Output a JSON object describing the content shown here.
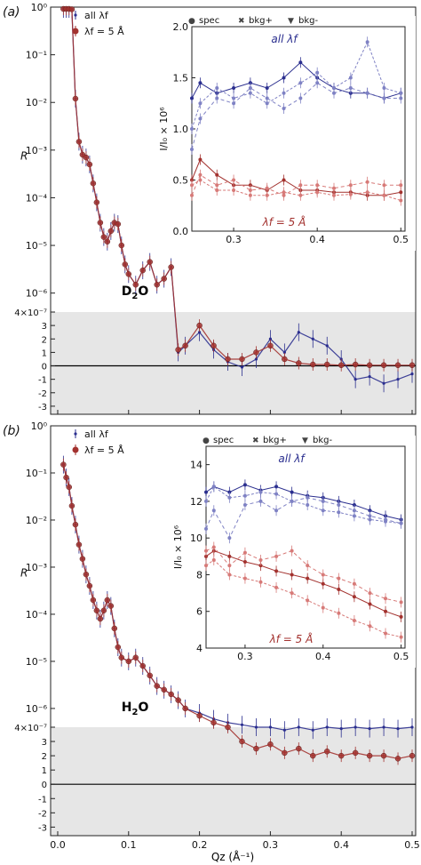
{
  "panels": [
    {
      "id": "a",
      "panel_label": "(a)",
      "sample_label": "D2O",
      "inset_title_all": "all λf",
      "inset_title_5": "λf = 5 Å"
    },
    {
      "id": "b",
      "panel_label": "(b)",
      "sample_label": "H2O",
      "inset_title_all": "all λf",
      "inset_title_5": "λf = 5 Å"
    }
  ],
  "legend": {
    "all": "all λf",
    "five": "λf = 5 Å"
  },
  "inset_legend": [
    "spec",
    "bkg+",
    "bkg-"
  ],
  "colors": {
    "blue": "#2b2f8f",
    "red": "#a3322f",
    "blue_light": "#7f82c4",
    "red_light": "#d77a78",
    "shade": "#e6e6e6"
  },
  "axis_text": {
    "x": "Qz (Å⁻¹)",
    "y": "R",
    "inset_y": "I/I₀ × 10⁶"
  },
  "chart_data": [
    {
      "type": "scatter",
      "title": "(a) D2O",
      "xlabel": "Qz (Å⁻¹)",
      "ylabel": "R",
      "xlim": [
        -0.01,
        0.505
      ],
      "y_scale": "log above 4e-7, linear below",
      "log_ticks": [
        "10⁰",
        "10⁻¹",
        "10⁻²",
        "10⁻³",
        "10⁻⁴",
        "10⁻⁵",
        "10⁻⁶"
      ],
      "linear_ticks": [
        "4×10⁻⁷",
        "3",
        "2",
        "1",
        "0",
        "-1",
        "-2",
        "-3"
      ],
      "series": [
        {
          "name": "all λf",
          "x": [
            0.008,
            0.012,
            0.016,
            0.02,
            0.025,
            0.03,
            0.035,
            0.04,
            0.045,
            0.05,
            0.055,
            0.06,
            0.065,
            0.07,
            0.075,
            0.08,
            0.085,
            0.09,
            0.095,
            0.1,
            0.11,
            0.12,
            0.13,
            0.14,
            0.15,
            0.16,
            0.17,
            0.18,
            0.2,
            0.22,
            0.24,
            0.26,
            0.28,
            0.3,
            0.32,
            0.34,
            0.36,
            0.38,
            0.4,
            0.42,
            0.44,
            0.46,
            0.48,
            0.5
          ],
          "y": [
            1,
            1,
            1,
            0.9,
            0.012,
            0.0015,
            0.0008,
            0.0007,
            0.0005,
            0.0002,
            8e-05,
            3e-05,
            1.5e-05,
            1.2e-05,
            2e-05,
            3e-05,
            2.8e-05,
            1e-05,
            4e-06,
            2.5e-06,
            1.5e-06,
            3e-06,
            4.5e-06,
            1.5e-06,
            2e-06,
            3.5e-06,
            1e-07,
            1.5e-07,
            2.5e-07,
            1.2e-07,
            3e-08,
            -1e-08,
            5e-08,
            2e-07,
            1e-07,
            2.5e-07,
            2e-07,
            1.5e-07,
            5e-08,
            -1e-07,
            -8e-08,
            -1.3e-07,
            -1e-07,
            -6e-08
          ]
        },
        {
          "name": "λf = 5 Å",
          "x": [
            0.008,
            0.012,
            0.016,
            0.02,
            0.025,
            0.03,
            0.035,
            0.04,
            0.045,
            0.05,
            0.055,
            0.06,
            0.065,
            0.07,
            0.075,
            0.08,
            0.085,
            0.09,
            0.095,
            0.1,
            0.11,
            0.12,
            0.13,
            0.14,
            0.15,
            0.16,
            0.17,
            0.18,
            0.2,
            0.22,
            0.24,
            0.26,
            0.28,
            0.3,
            0.32,
            0.34,
            0.36,
            0.38,
            0.4,
            0.42,
            0.44,
            0.46,
            0.48,
            0.5
          ],
          "y": [
            1,
            1,
            1,
            0.9,
            0.012,
            0.0015,
            0.0008,
            0.0007,
            0.0005,
            0.0002,
            8e-05,
            3e-05,
            1.5e-05,
            1.2e-05,
            2e-05,
            3e-05,
            2.8e-05,
            1e-05,
            4e-06,
            2.5e-06,
            1.5e-06,
            3e-06,
            4.5e-06,
            1.5e-06,
            2e-06,
            3.5e-06,
            1.2e-07,
            1.5e-07,
            3e-07,
            1.5e-07,
            5e-08,
            5e-08,
            1e-07,
            1.5e-07,
            5e-08,
            2e-08,
            1e-08,
            1e-08,
            5e-09,
            1e-08,
            5e-09,
            5e-09,
            5e-09,
            5e-09
          ]
        }
      ],
      "inset": {
        "xlabel": "",
        "ylabel": "I/I₀ × 10⁶",
        "xlim": [
          0.25,
          0.505
        ],
        "ylim": [
          0,
          2.0
        ],
        "xticks": [
          "0.3",
          "0.4",
          "0.5"
        ],
        "yticks": [
          "0.0",
          "0.5",
          "1.0",
          "1.5",
          "2.0"
        ],
        "series": [
          {
            "name": "all λf spec",
            "x": [
              0.25,
              0.26,
              0.28,
              0.3,
              0.32,
              0.34,
              0.36,
              0.38,
              0.4,
              0.42,
              0.44,
              0.46,
              0.48,
              0.5
            ],
            "y": [
              1.3,
              1.45,
              1.35,
              1.4,
              1.45,
              1.4,
              1.5,
              1.65,
              1.5,
              1.4,
              1.35,
              1.35,
              1.3,
              1.35
            ]
          },
          {
            "name": "all λf bkg+",
            "x": [
              0.25,
              0.26,
              0.28,
              0.3,
              0.32,
              0.34,
              0.36,
              0.38,
              0.4,
              0.42,
              0.44,
              0.46,
              0.48,
              0.5
            ],
            "y": [
              1.0,
              1.25,
              1.4,
              1.3,
              1.35,
              1.25,
              1.35,
              1.45,
              1.55,
              1.4,
              1.5,
              1.85,
              1.4,
              1.35
            ]
          },
          {
            "name": "all λf bkg-",
            "x": [
              0.25,
              0.26,
              0.28,
              0.3,
              0.32,
              0.34,
              0.36,
              0.38,
              0.4,
              0.42,
              0.44,
              0.46,
              0.48,
              0.5
            ],
            "y": [
              0.8,
              1.1,
              1.3,
              1.25,
              1.4,
              1.3,
              1.2,
              1.3,
              1.45,
              1.35,
              1.4,
              1.35,
              1.3,
              1.3
            ]
          },
          {
            "name": "λf = 5 Å spec",
            "x": [
              0.25,
              0.26,
              0.28,
              0.3,
              0.32,
              0.34,
              0.36,
              0.38,
              0.4,
              0.42,
              0.44,
              0.46,
              0.48,
              0.5
            ],
            "y": [
              0.5,
              0.7,
              0.55,
              0.45,
              0.45,
              0.4,
              0.5,
              0.4,
              0.4,
              0.38,
              0.38,
              0.35,
              0.35,
              0.38
            ]
          },
          {
            "name": "λf = 5 Å bkg+",
            "x": [
              0.25,
              0.26,
              0.28,
              0.3,
              0.32,
              0.34,
              0.36,
              0.38,
              0.4,
              0.42,
              0.44,
              0.46,
              0.48,
              0.5
            ],
            "y": [
              0.45,
              0.5,
              0.4,
              0.4,
              0.35,
              0.35,
              0.38,
              0.35,
              0.38,
              0.35,
              0.36,
              0.38,
              0.35,
              0.3
            ]
          },
          {
            "name": "λf = 5 Å bkg-",
            "x": [
              0.25,
              0.26,
              0.28,
              0.3,
              0.32,
              0.34,
              0.36,
              0.38,
              0.4,
              0.42,
              0.44,
              0.46,
              0.48,
              0.5
            ],
            "y": [
              0.35,
              0.55,
              0.45,
              0.5,
              0.4,
              0.42,
              0.35,
              0.45,
              0.45,
              0.42,
              0.45,
              0.48,
              0.45,
              0.45
            ]
          }
        ]
      }
    },
    {
      "type": "scatter",
      "title": "(b) H2O",
      "xlabel": "Qz (Å⁻¹)",
      "ylabel": "R",
      "xlim": [
        -0.01,
        0.505
      ],
      "xticks": [
        "0.0",
        "0.1",
        "0.2",
        "0.3",
        "0.4",
        "0.5"
      ],
      "y_scale": "log above 4e-7, linear below",
      "log_ticks": [
        "10⁰",
        "10⁻¹",
        "10⁻²",
        "10⁻³",
        "10⁻⁴",
        "10⁻⁵",
        "10⁻⁶"
      ],
      "linear_ticks": [
        "4×10⁻⁷",
        "3",
        "2",
        "1",
        "0",
        "-1",
        "-2",
        "-3"
      ],
      "series": [
        {
          "name": "all λf",
          "x": [
            0.008,
            0.012,
            0.016,
            0.02,
            0.025,
            0.03,
            0.035,
            0.04,
            0.045,
            0.05,
            0.055,
            0.06,
            0.065,
            0.07,
            0.075,
            0.08,
            0.085,
            0.09,
            0.1,
            0.11,
            0.12,
            0.13,
            0.14,
            0.15,
            0.16,
            0.17,
            0.18,
            0.2,
            0.22,
            0.24,
            0.26,
            0.28,
            0.3,
            0.32,
            0.34,
            0.36,
            0.38,
            0.4,
            0.42,
            0.44,
            0.46,
            0.48,
            0.5
          ],
          "y": [
            0.15,
            0.08,
            0.05,
            0.02,
            0.008,
            0.003,
            0.0015,
            0.0007,
            0.0004,
            0.0002,
            0.00012,
            8e-05,
            0.00012,
            0.0002,
            0.00015,
            5e-05,
            2e-05,
            1.2e-05,
            1e-05,
            1.2e-05,
            8e-06,
            5e-06,
            3e-06,
            2.5e-06,
            2e-06,
            1.5e-06,
            1e-06,
            8e-07,
            6e-07,
            5e-07,
            4.5e-07,
            4e-07,
            4e-07,
            3.8e-07,
            4e-07,
            3.8e-07,
            4e-07,
            3.9e-07,
            4e-07,
            3.9e-07,
            4e-07,
            3.9e-07,
            4e-07
          ]
        },
        {
          "name": "λf = 5 Å",
          "x": [
            0.008,
            0.012,
            0.016,
            0.02,
            0.025,
            0.03,
            0.035,
            0.04,
            0.045,
            0.05,
            0.055,
            0.06,
            0.065,
            0.07,
            0.075,
            0.08,
            0.085,
            0.09,
            0.1,
            0.11,
            0.12,
            0.13,
            0.14,
            0.15,
            0.16,
            0.17,
            0.18,
            0.2,
            0.22,
            0.24,
            0.26,
            0.28,
            0.3,
            0.32,
            0.34,
            0.36,
            0.38,
            0.4,
            0.42,
            0.44,
            0.46,
            0.48,
            0.5
          ],
          "y": [
            0.15,
            0.08,
            0.05,
            0.02,
            0.008,
            0.003,
            0.0015,
            0.0007,
            0.0004,
            0.0002,
            0.00012,
            8e-05,
            0.00012,
            0.0002,
            0.00015,
            5e-05,
            2e-05,
            1.2e-05,
            1e-05,
            1.2e-05,
            8e-06,
            5e-06,
            3e-06,
            2.5e-06,
            2e-06,
            1.5e-06,
            1e-06,
            7e-07,
            5e-07,
            4e-07,
            3e-07,
            2.5e-07,
            2.8e-07,
            2.2e-07,
            2.5e-07,
            2e-07,
            2.3e-07,
            2e-07,
            2.2e-07,
            2e-07,
            2e-07,
            1.8e-07,
            2e-07
          ]
        }
      ],
      "inset": {
        "xlabel": "",
        "ylabel": "I/I₀ × 10⁶",
        "xlim": [
          0.25,
          0.505
        ],
        "ylim": [
          4,
          15
        ],
        "xticks": [
          "0.3",
          "0.4",
          "0.5"
        ],
        "yticks": [
          "4",
          "6",
          "8",
          "10",
          "12",
          "14"
        ],
        "series": [
          {
            "name": "all λf spec",
            "x": [
              0.25,
              0.26,
              0.28,
              0.3,
              0.32,
              0.34,
              0.36,
              0.38,
              0.4,
              0.42,
              0.44,
              0.46,
              0.48,
              0.5
            ],
            "y": [
              12.5,
              12.8,
              12.5,
              12.9,
              12.6,
              12.8,
              12.5,
              12.3,
              12.2,
              12.0,
              11.8,
              11.5,
              11.2,
              11.0
            ]
          },
          {
            "name": "all λf bkg+",
            "x": [
              0.25,
              0.26,
              0.28,
              0.3,
              0.32,
              0.34,
              0.36,
              0.38,
              0.4,
              0.42,
              0.44,
              0.46,
              0.48,
              0.5
            ],
            "y": [
              12.0,
              12.8,
              12.2,
              12.3,
              12.5,
              12.4,
              12.0,
              11.8,
              11.5,
              11.4,
              11.2,
              11.0,
              10.9,
              10.8
            ]
          },
          {
            "name": "all λf bkg-",
            "x": [
              0.25,
              0.26,
              0.28,
              0.3,
              0.32,
              0.34,
              0.36,
              0.38,
              0.4,
              0.42,
              0.44,
              0.46,
              0.48,
              0.5
            ],
            "y": [
              10.5,
              11.5,
              10.0,
              11.8,
              12.0,
              11.5,
              12.0,
              12.2,
              12.0,
              11.8,
              11.5,
              11.2,
              11.0,
              10.8
            ]
          },
          {
            "name": "λf = 5 Å spec",
            "x": [
              0.25,
              0.26,
              0.28,
              0.3,
              0.32,
              0.34,
              0.36,
              0.38,
              0.4,
              0.42,
              0.44,
              0.46,
              0.48,
              0.5
            ],
            "y": [
              9.0,
              9.3,
              9.0,
              8.7,
              8.5,
              8.2,
              8.0,
              7.8,
              7.5,
              7.2,
              6.8,
              6.4,
              6.0,
              5.7
            ]
          },
          {
            "name": "λf = 5 Å bkg+",
            "x": [
              0.25,
              0.26,
              0.28,
              0.3,
              0.32,
              0.34,
              0.36,
              0.38,
              0.4,
              0.42,
              0.44,
              0.46,
              0.48,
              0.5
            ],
            "y": [
              8.5,
              8.8,
              8.0,
              7.8,
              7.6,
              7.3,
              7.0,
              6.6,
              6.2,
              5.9,
              5.5,
              5.2,
              4.8,
              4.6
            ]
          },
          {
            "name": "λf = 5 Å bkg-",
            "x": [
              0.25,
              0.26,
              0.28,
              0.3,
              0.32,
              0.34,
              0.36,
              0.38,
              0.4,
              0.42,
              0.44,
              0.46,
              0.48,
              0.5
            ],
            "y": [
              9.3,
              9.5,
              8.5,
              9.2,
              8.8,
              9.0,
              9.3,
              8.5,
              8.0,
              7.8,
              7.5,
              7.0,
              6.7,
              6.5
            ]
          }
        ]
      }
    }
  ]
}
